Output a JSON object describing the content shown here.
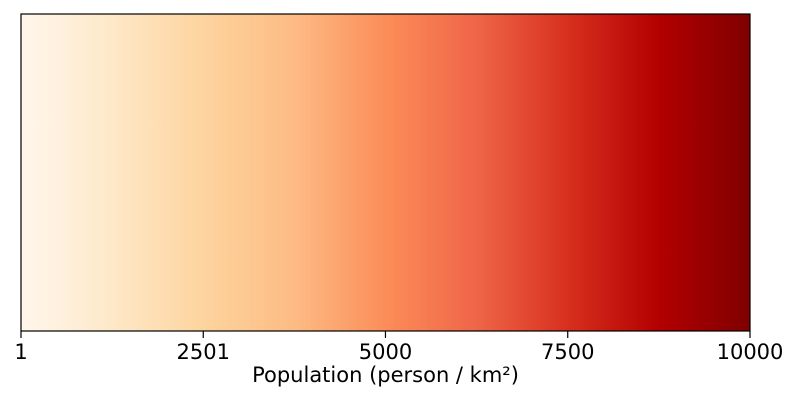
{
  "chart_data": {
    "type": "colorbar",
    "orientation": "horizontal",
    "colormap": "OrRd",
    "xlabel": "Population (person / km²)",
    "range": [
      1,
      10000
    ],
    "ticks": [
      {
        "value": 1,
        "label": "1"
      },
      {
        "value": 2501,
        "label": "2501"
      },
      {
        "value": 5000,
        "label": "5000"
      },
      {
        "value": 7500,
        "label": "7500"
      },
      {
        "value": 10000,
        "label": "10000"
      }
    ],
    "color_stops": [
      {
        "value": 1,
        "color": "#fff7ec"
      },
      {
        "value": 1250,
        "color": "#fee8c8"
      },
      {
        "value": 2500,
        "color": "#fdd49e"
      },
      {
        "value": 3750,
        "color": "#fdbb84"
      },
      {
        "value": 5000,
        "color": "#fc8d59"
      },
      {
        "value": 6250,
        "color": "#ef6548"
      },
      {
        "value": 7500,
        "color": "#d7301f"
      },
      {
        "value": 8750,
        "color": "#b30000"
      },
      {
        "value": 10000,
        "color": "#7f0000"
      }
    ],
    "frame_color": "#000000"
  }
}
